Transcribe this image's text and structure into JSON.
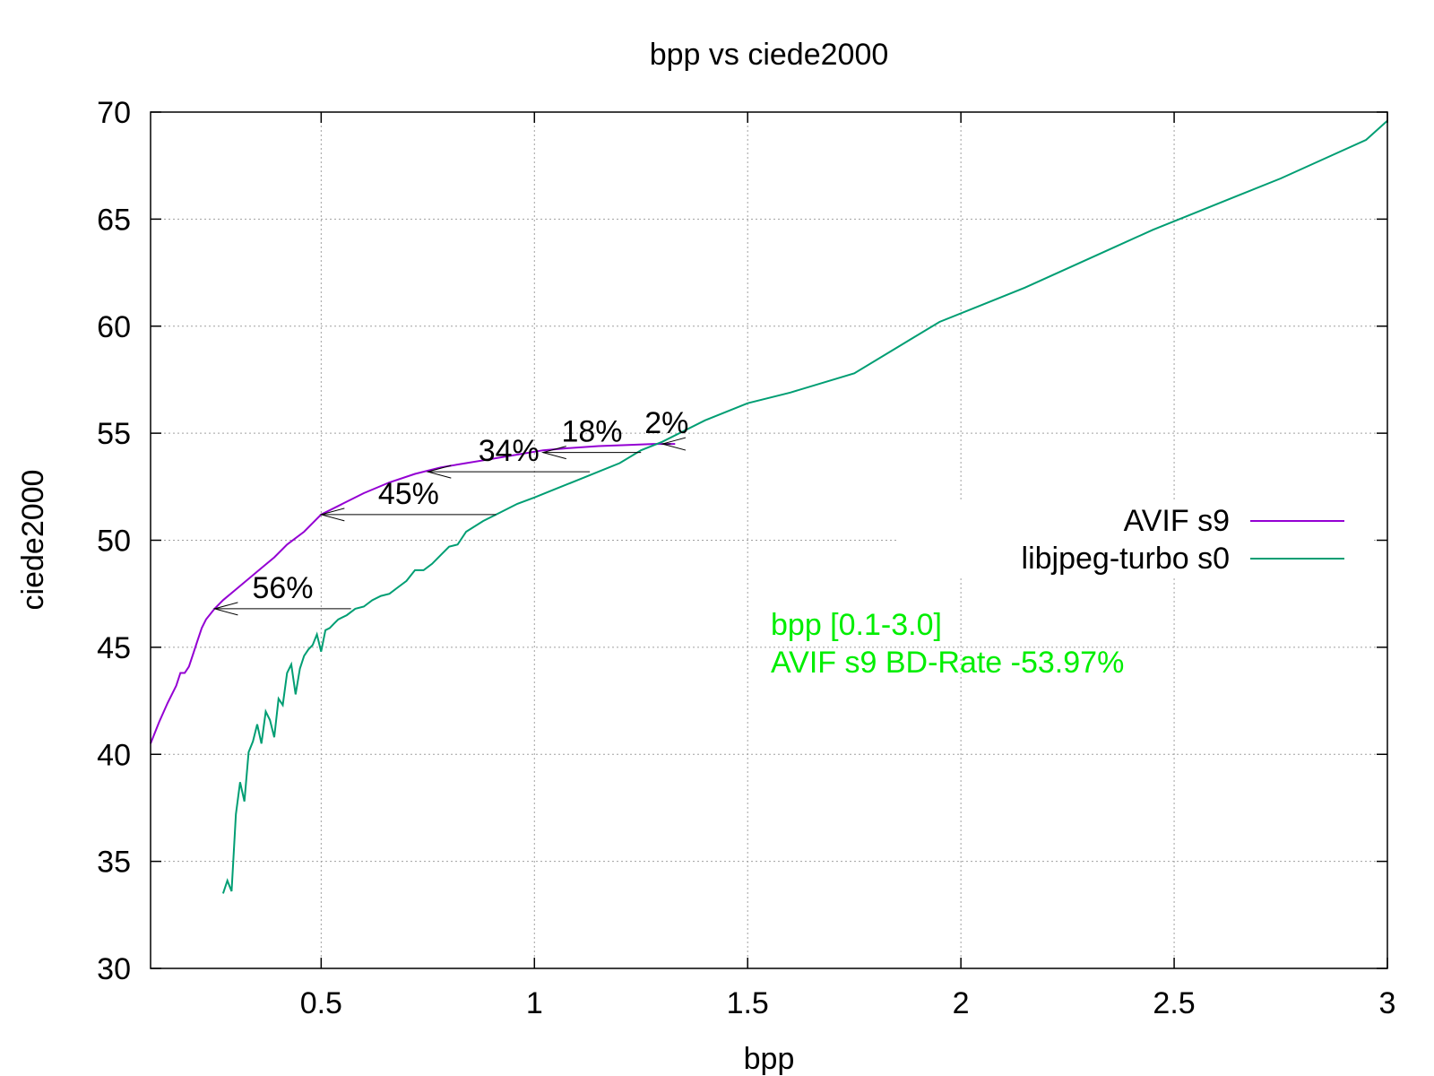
{
  "chart_data": {
    "type": "line",
    "title": "bpp vs ciede2000",
    "xlabel": "bpp",
    "ylabel": "ciede2000",
    "xlim": [
      0.1,
      3.0
    ],
    "ylim": [
      30,
      70
    ],
    "grid": true,
    "legend_position": "right",
    "xticks": [
      0.5,
      1,
      1.5,
      2,
      2.5,
      3
    ],
    "xtick_labels": [
      "0.5",
      "1",
      "1.5",
      "2",
      "2.5",
      "3"
    ],
    "yticks": [
      30,
      35,
      40,
      45,
      50,
      55,
      60,
      65,
      70
    ],
    "ytick_labels": [
      "30",
      "35",
      "40",
      "45",
      "50",
      "55",
      "60",
      "65",
      "70"
    ],
    "series": [
      {
        "name": "AVIF s9",
        "color": "#9400d3",
        "points": [
          [
            0.1,
            40.5
          ],
          [
            0.12,
            41.5
          ],
          [
            0.14,
            42.4
          ],
          [
            0.16,
            43.2
          ],
          [
            0.17,
            43.8
          ],
          [
            0.18,
            43.8
          ],
          [
            0.19,
            44.1
          ],
          [
            0.2,
            44.7
          ],
          [
            0.21,
            45.3
          ],
          [
            0.22,
            45.9
          ],
          [
            0.23,
            46.3
          ],
          [
            0.25,
            46.8
          ],
          [
            0.27,
            47.2
          ],
          [
            0.3,
            47.7
          ],
          [
            0.33,
            48.2
          ],
          [
            0.36,
            48.7
          ],
          [
            0.39,
            49.2
          ],
          [
            0.42,
            49.8
          ],
          [
            0.46,
            50.4
          ],
          [
            0.5,
            51.2
          ],
          [
            0.55,
            51.7
          ],
          [
            0.6,
            52.2
          ],
          [
            0.66,
            52.7
          ],
          [
            0.72,
            53.1
          ],
          [
            0.78,
            53.4
          ],
          [
            0.84,
            53.6
          ],
          [
            0.9,
            53.8
          ],
          [
            0.96,
            54.0
          ],
          [
            1.02,
            54.2
          ],
          [
            1.08,
            54.3
          ],
          [
            1.15,
            54.4
          ],
          [
            1.22,
            54.45
          ],
          [
            1.28,
            54.5
          ],
          [
            1.33,
            54.5
          ]
        ]
      },
      {
        "name": "libjpeg-turbo s0",
        "color": "#009e73",
        "points": [
          [
            0.27,
            33.5
          ],
          [
            0.28,
            34.1
          ],
          [
            0.29,
            33.6
          ],
          [
            0.3,
            37.2
          ],
          [
            0.31,
            38.7
          ],
          [
            0.32,
            37.8
          ],
          [
            0.33,
            40.1
          ],
          [
            0.34,
            40.6
          ],
          [
            0.35,
            41.4
          ],
          [
            0.36,
            40.5
          ],
          [
            0.37,
            42.0
          ],
          [
            0.38,
            41.6
          ],
          [
            0.39,
            40.8
          ],
          [
            0.4,
            42.6
          ],
          [
            0.41,
            42.3
          ],
          [
            0.42,
            43.8
          ],
          [
            0.43,
            44.2
          ],
          [
            0.44,
            42.8
          ],
          [
            0.45,
            44.0
          ],
          [
            0.46,
            44.6
          ],
          [
            0.47,
            44.9
          ],
          [
            0.48,
            45.1
          ],
          [
            0.49,
            45.6
          ],
          [
            0.5,
            44.8
          ],
          [
            0.51,
            45.8
          ],
          [
            0.52,
            45.9
          ],
          [
            0.53,
            46.1
          ],
          [
            0.54,
            46.3
          ],
          [
            0.56,
            46.5
          ],
          [
            0.58,
            46.8
          ],
          [
            0.6,
            46.9
          ],
          [
            0.62,
            47.2
          ],
          [
            0.64,
            47.4
          ],
          [
            0.66,
            47.5
          ],
          [
            0.68,
            47.8
          ],
          [
            0.7,
            48.1
          ],
          [
            0.72,
            48.6
          ],
          [
            0.74,
            48.6
          ],
          [
            0.76,
            48.9
          ],
          [
            0.78,
            49.3
          ],
          [
            0.8,
            49.7
          ],
          [
            0.82,
            49.8
          ],
          [
            0.84,
            50.4
          ],
          [
            0.88,
            50.9
          ],
          [
            0.92,
            51.3
          ],
          [
            0.96,
            51.7
          ],
          [
            1.0,
            52.0
          ],
          [
            1.05,
            52.4
          ],
          [
            1.1,
            52.8
          ],
          [
            1.15,
            53.2
          ],
          [
            1.2,
            53.6
          ],
          [
            1.25,
            54.2
          ],
          [
            1.3,
            54.6
          ],
          [
            1.4,
            55.6
          ],
          [
            1.5,
            56.4
          ],
          [
            1.6,
            56.9
          ],
          [
            1.75,
            57.8
          ],
          [
            1.85,
            59.0
          ],
          [
            1.95,
            60.2
          ],
          [
            2.05,
            61.0
          ],
          [
            2.15,
            61.8
          ],
          [
            2.25,
            62.7
          ],
          [
            2.35,
            63.6
          ],
          [
            2.45,
            64.5
          ],
          [
            2.55,
            65.3
          ],
          [
            2.65,
            66.1
          ],
          [
            2.75,
            66.9
          ],
          [
            2.85,
            67.8
          ],
          [
            2.95,
            68.7
          ],
          [
            3.0,
            69.6
          ]
        ]
      }
    ],
    "annotations": [
      {
        "label": "56%",
        "x_from": 0.57,
        "x_to": 0.25,
        "y": 46.8
      },
      {
        "label": "45%",
        "x_from": 0.91,
        "x_to": 0.5,
        "y": 51.2
      },
      {
        "label": "34%",
        "x_from": 1.13,
        "x_to": 0.75,
        "y": 53.2
      },
      {
        "label": "18%",
        "x_from": 1.25,
        "x_to": 1.02,
        "y": 54.1
      },
      {
        "label": "2%",
        "x_from": 1.32,
        "x_to": 1.3,
        "y": 54.5
      }
    ],
    "info_text": [
      "bpp [0.1-3.0]",
      "AVIF s9 BD-Rate -53.97%"
    ],
    "info_color": "#00ee00"
  }
}
